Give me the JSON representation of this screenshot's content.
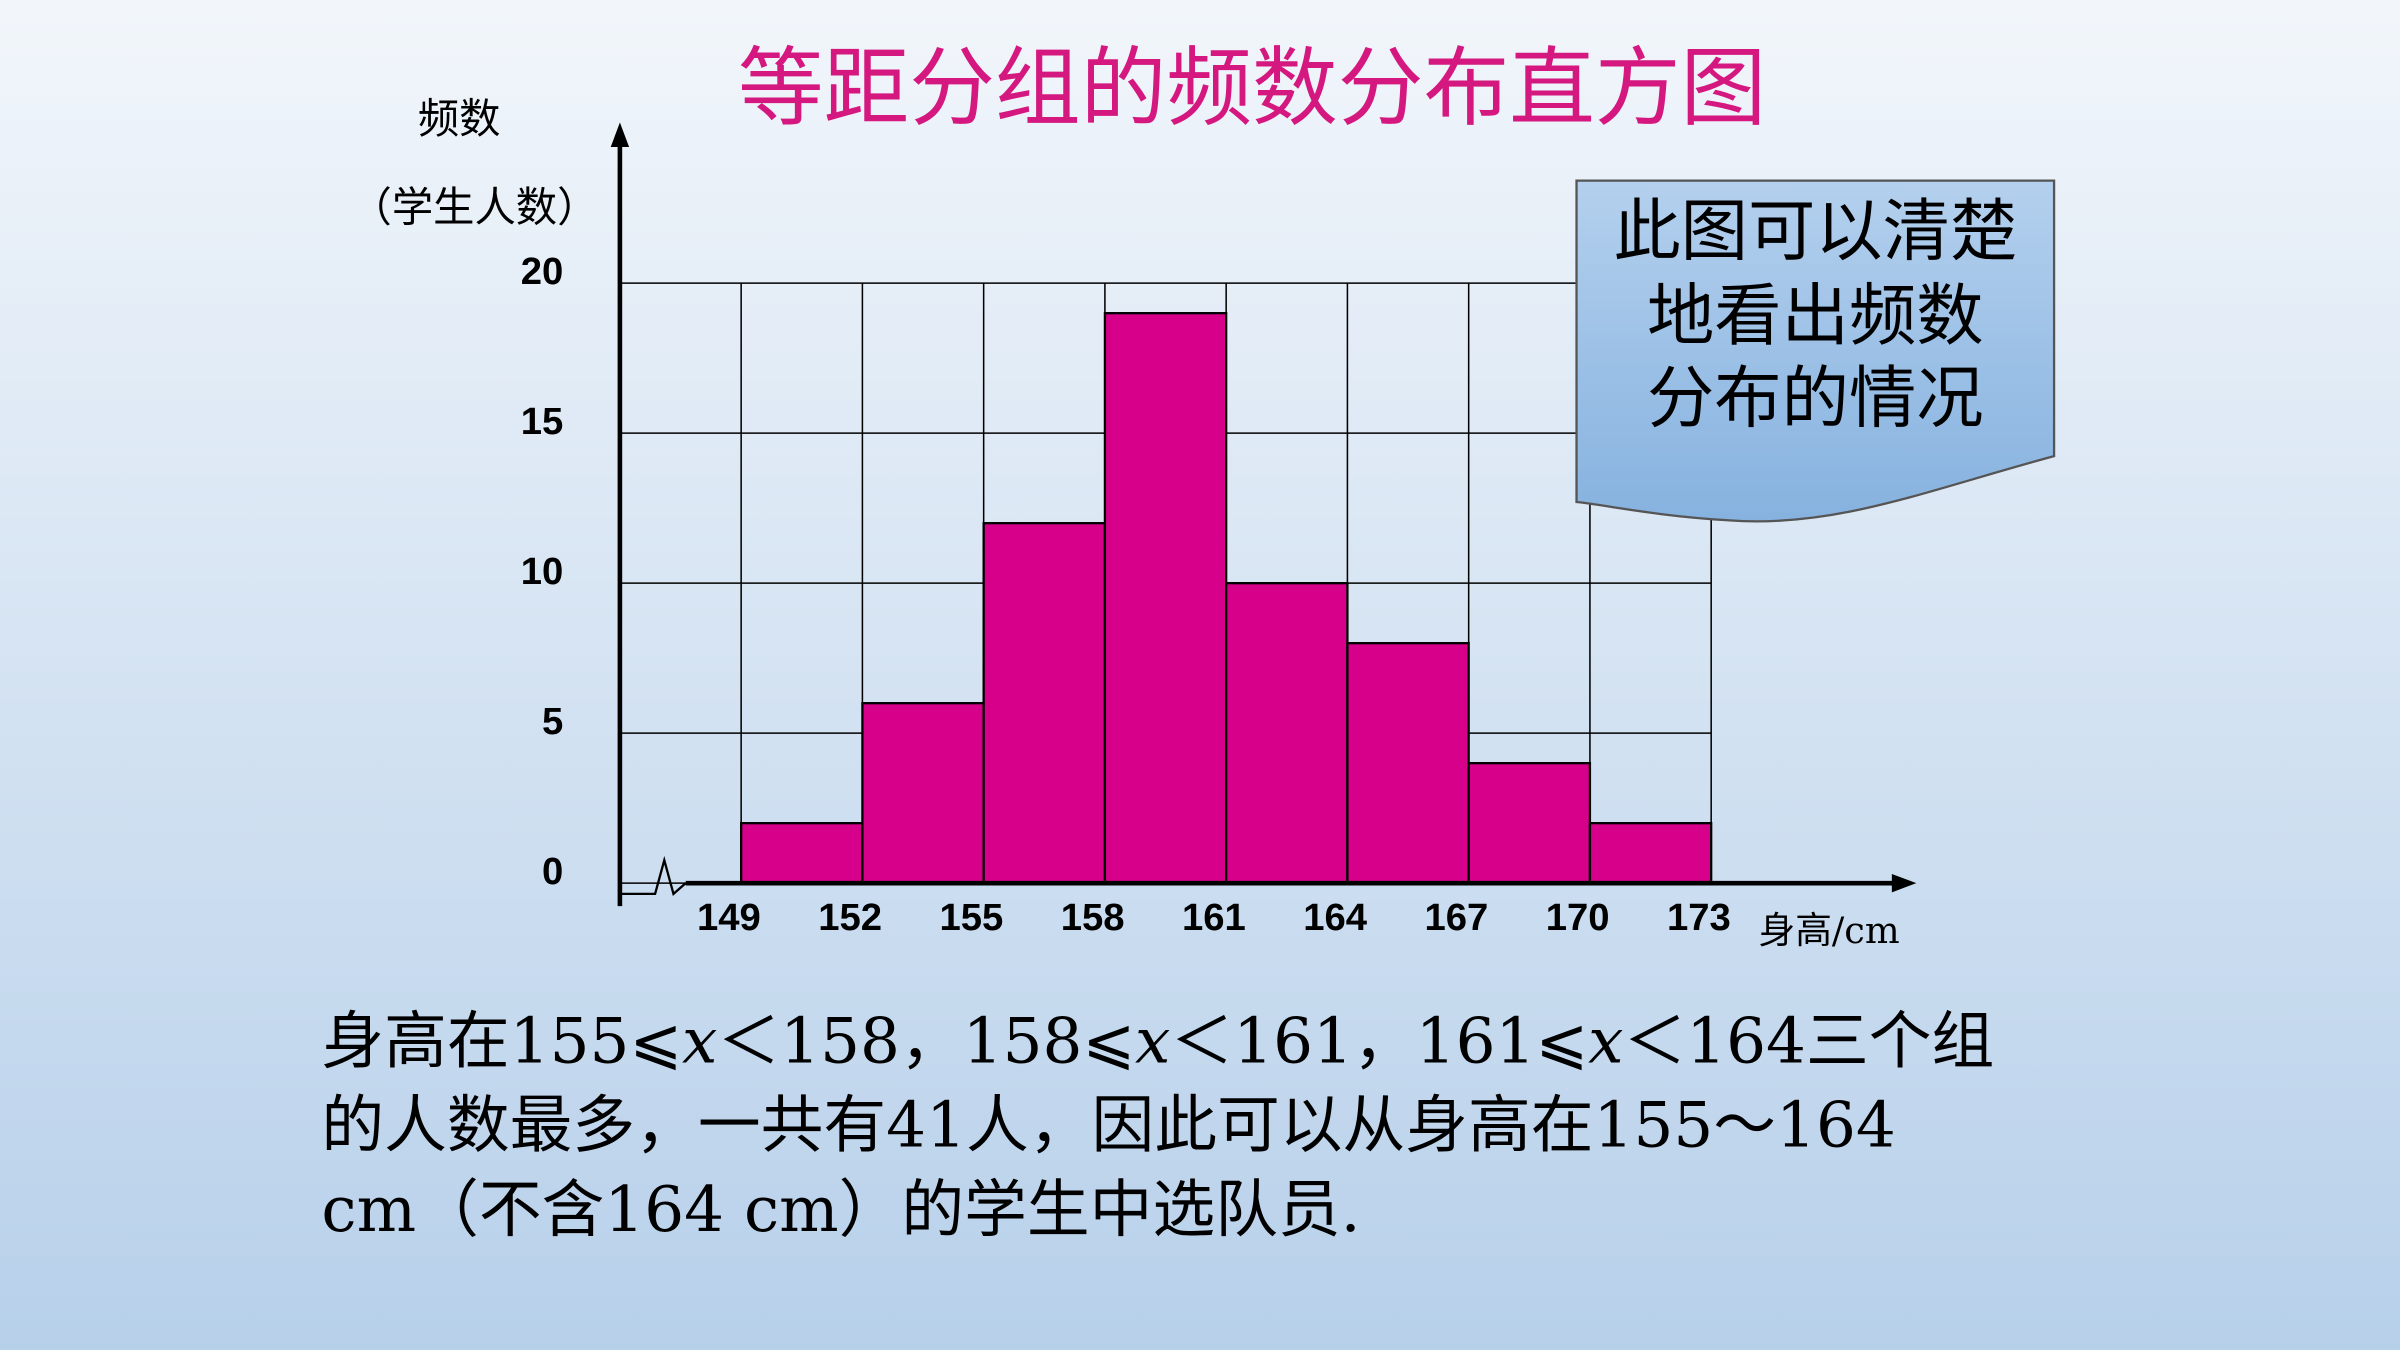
{
  "chart_data": {
    "type": "histogram",
    "title": "等距分组的频数分布直方图",
    "y_label": "频数",
    "y_label_sub": "（学生人数）",
    "x_label": "身高/cm",
    "bins": [
      149,
      152,
      155,
      158,
      161,
      164,
      167,
      170,
      173
    ],
    "values": [
      2,
      6,
      12,
      19,
      10,
      8,
      4,
      2
    ],
    "color": "#d6008a",
    "xlim": [
      146,
      178
    ],
    "ylim": [
      0,
      20
    ],
    "yticks": [
      0,
      5,
      10,
      15,
      20
    ],
    "grid": true
  },
  "callout": [
    "此图可以清楚",
    "地看出频数",
    "分布的情况"
  ],
  "note": [
    [
      "身高在155⩽",
      "x",
      "＜158，158⩽",
      "x",
      "＜161，161⩽",
      "x",
      "＜164三个组"
    ],
    [
      "的人数最多，一共有41人，因此可以从身高在155～164"
    ],
    [
      "cm（不含164 cm）的学生中选队员."
    ]
  ]
}
